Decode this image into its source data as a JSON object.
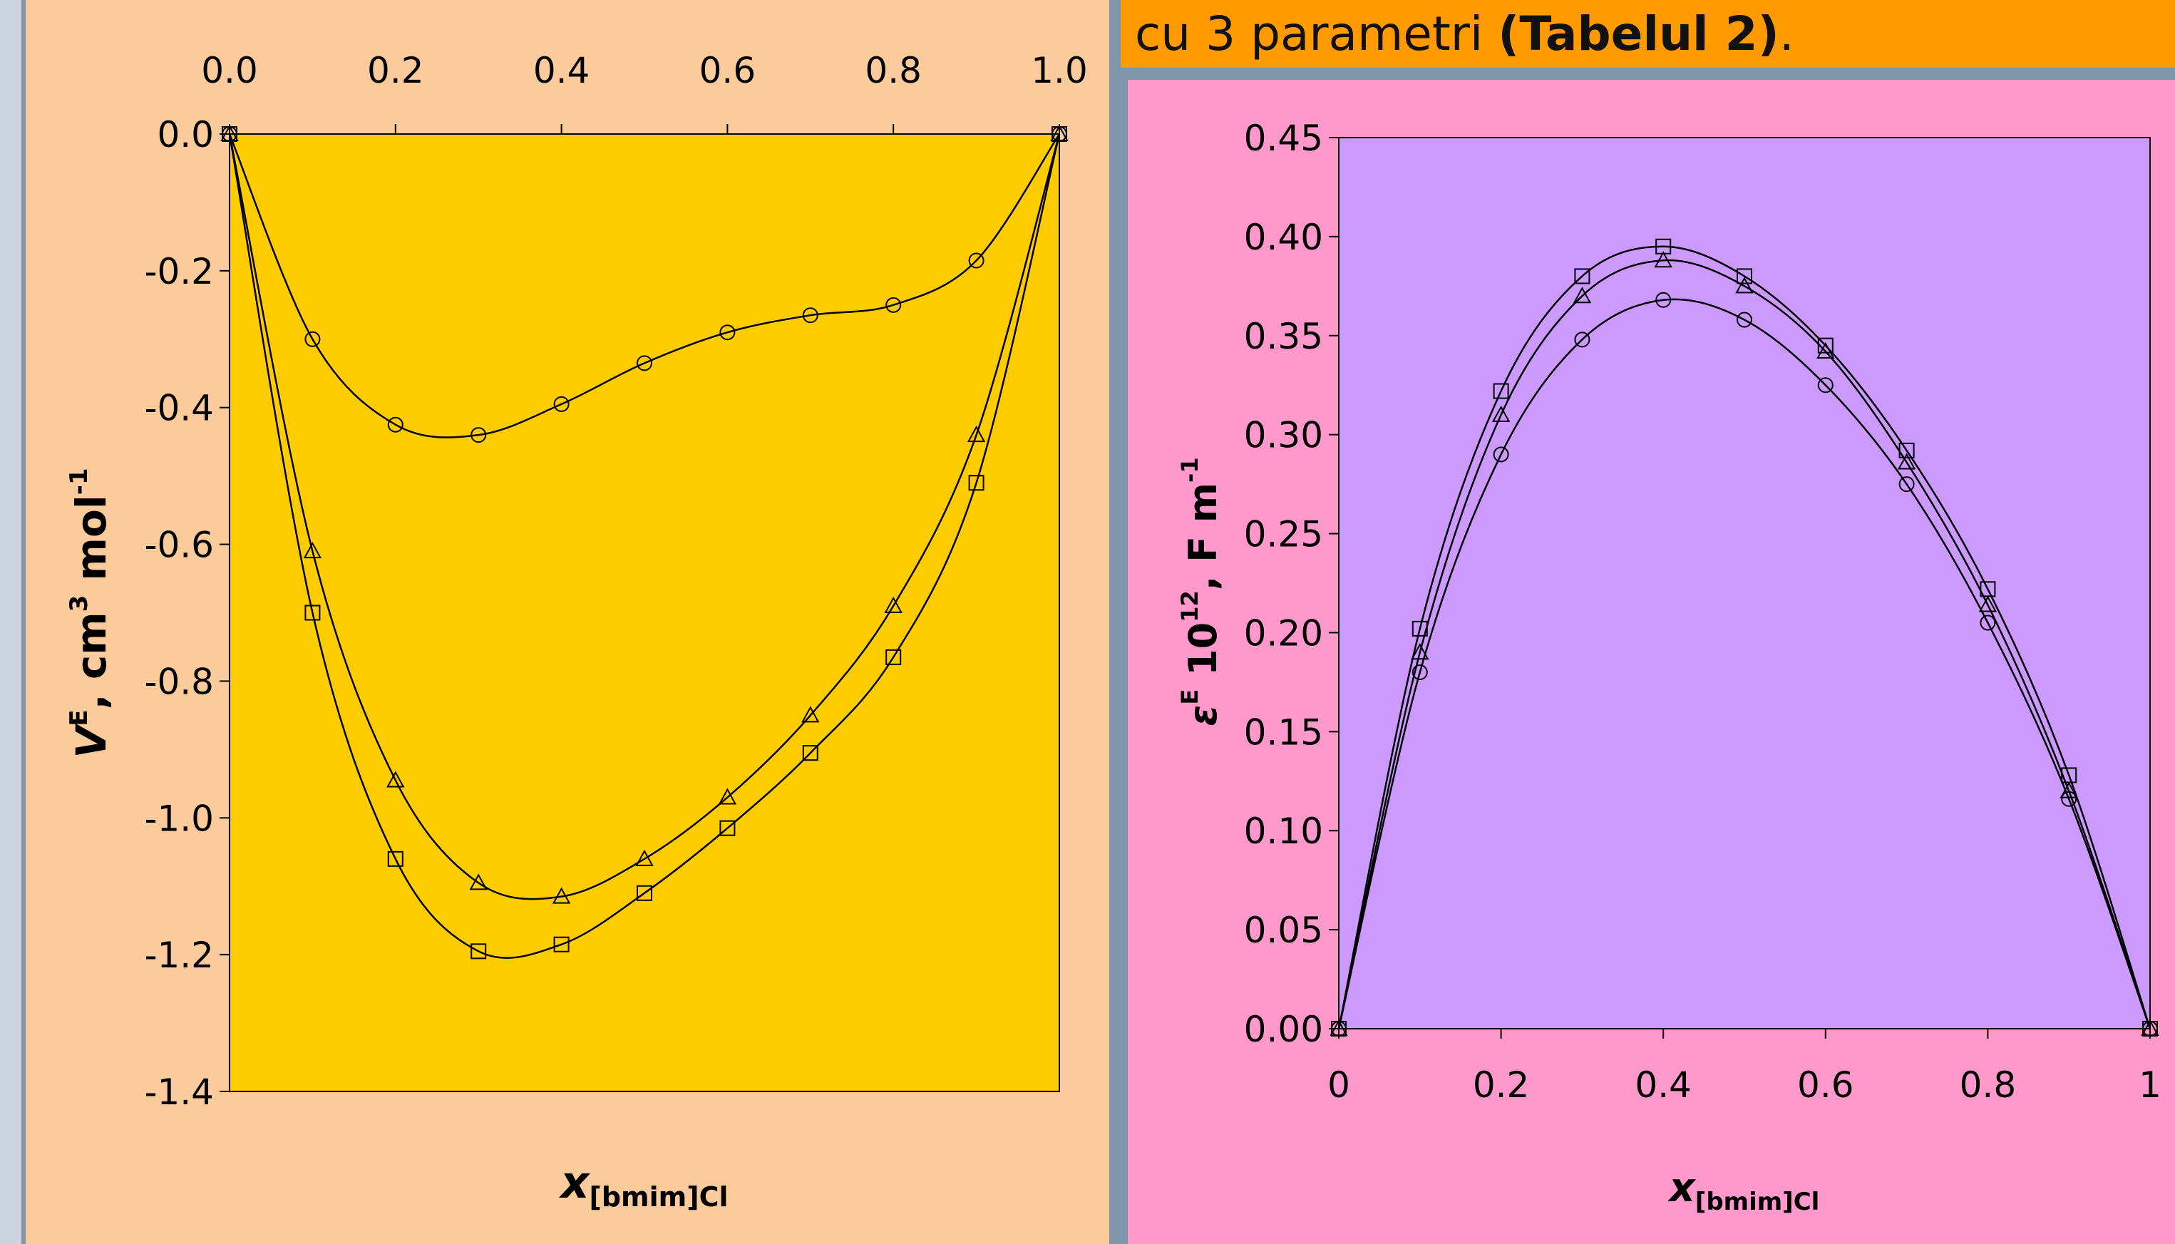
{
  "header": {
    "text_prefix": "cu 3 parametri ",
    "text_bold": "(Tabelul 2)",
    "text_suffix": "."
  },
  "colors": {
    "left_panel": "#fccb9c",
    "left_plot": "#ffcc00",
    "right_panel": "#ff99cc",
    "right_plot": "#cc99ff",
    "header_bar": "#ff9a00"
  },
  "chart_data": [
    {
      "type": "scatter",
      "x_axis_position": "top",
      "xlabel_main": "x",
      "xlabel_sub": "[bmim]Cl",
      "ylabel_main": "V",
      "ylabel_sup": "E",
      "ylabel_rest": ", cm",
      "ylabel_sup2": "3",
      "ylabel_rest2": " mol",
      "ylabel_sup3": "-1",
      "xlim": [
        0,
        1
      ],
      "ylim": [
        -1.4,
        0
      ],
      "xticks": [
        "0.0",
        "0.2",
        "0.4",
        "0.6",
        "0.8",
        "1.0"
      ],
      "yticks": [
        "0.0",
        "-0.2",
        "-0.4",
        "-0.6",
        "-0.8",
        "-1.0",
        "-1.2",
        "-1.4"
      ],
      "x": [
        0,
        0.1,
        0.2,
        0.3,
        0.4,
        0.5,
        0.6,
        0.7,
        0.8,
        0.9,
        1.0
      ],
      "series": [
        {
          "marker": "circle",
          "values": [
            0,
            -0.3,
            -0.425,
            -0.44,
            -0.395,
            -0.335,
            -0.29,
            -0.265,
            -0.25,
            -0.185,
            0
          ]
        },
        {
          "marker": "triangle",
          "values": [
            0,
            -0.61,
            -0.945,
            -1.095,
            -1.115,
            -1.06,
            -0.97,
            -0.85,
            -0.69,
            -0.44,
            0
          ]
        },
        {
          "marker": "square",
          "values": [
            0,
            -0.7,
            -1.06,
            -1.195,
            -1.185,
            -1.11,
            -1.015,
            -0.905,
            -0.765,
            -0.51,
            0
          ]
        }
      ]
    },
    {
      "type": "scatter",
      "x_axis_position": "bottom",
      "xlabel_main": "x",
      "xlabel_sub": "[bmim]Cl",
      "ylabel_main": "ε",
      "ylabel_sup": "E",
      "ylabel_rest": " 10",
      "ylabel_sup2": "12",
      "ylabel_rest2": ", F m",
      "ylabel_sup3": "-1",
      "xlim": [
        0,
        1
      ],
      "ylim": [
        0,
        0.45
      ],
      "xticks": [
        "0",
        "0.2",
        "0.4",
        "0.6",
        "0.8",
        "1"
      ],
      "yticks": [
        "0.00",
        "0.05",
        "0.10",
        "0.15",
        "0.20",
        "0.25",
        "0.30",
        "0.35",
        "0.40",
        "0.45"
      ],
      "x": [
        0,
        0.1,
        0.2,
        0.3,
        0.4,
        0.5,
        0.6,
        0.7,
        0.8,
        0.9,
        1.0
      ],
      "series": [
        {
          "marker": "circle",
          "values": [
            0,
            0.18,
            0.29,
            0.348,
            0.368,
            0.358,
            0.325,
            0.275,
            0.205,
            0.116,
            0
          ]
        },
        {
          "marker": "triangle",
          "values": [
            0,
            0.19,
            0.31,
            0.37,
            0.388,
            0.375,
            0.342,
            0.286,
            0.214,
            0.12,
            0
          ]
        },
        {
          "marker": "square",
          "values": [
            0,
            0.202,
            0.322,
            0.38,
            0.395,
            0.38,
            0.345,
            0.292,
            0.222,
            0.128,
            0
          ]
        }
      ]
    }
  ]
}
